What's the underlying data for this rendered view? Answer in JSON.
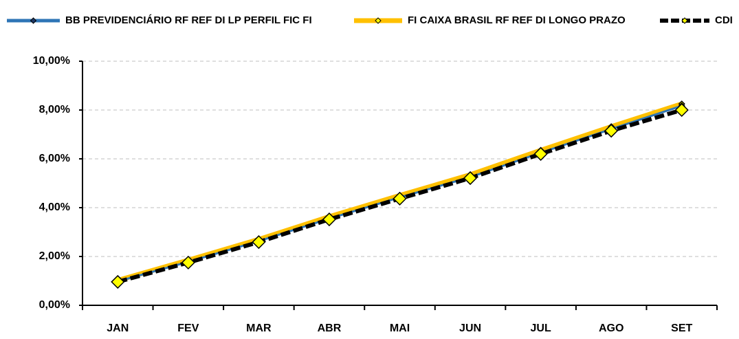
{
  "chart_data": {
    "type": "line",
    "categories": [
      "JAN",
      "FEV",
      "MAR",
      "ABR",
      "MAI",
      "JUN",
      "JUL",
      "AGO",
      "SET"
    ],
    "series": [
      {
        "name": "BB PREVIDENCIÁRIO RF REF DI LP PERFIL FIC FI",
        "color": "#2e75b6",
        "values": [
          0.98,
          1.78,
          2.63,
          3.55,
          4.42,
          5.25,
          6.25,
          7.22,
          8.17
        ]
      },
      {
        "name": "FI CAIXA BRASIL RF REF DI LONGO PRAZO",
        "color": "#ffc000",
        "values": [
          1.02,
          1.85,
          2.7,
          3.63,
          4.5,
          5.35,
          6.35,
          7.32,
          8.25
        ]
      },
      {
        "name": "CDI",
        "color": "#000000",
        "values": [
          0.96,
          1.75,
          2.59,
          3.52,
          4.37,
          5.21,
          6.2,
          7.15,
          8.0
        ]
      }
    ],
    "ylim": [
      0,
      10
    ],
    "yticks": [
      {
        "value": 0,
        "label": "0,00%"
      },
      {
        "value": 2,
        "label": "2,00%"
      },
      {
        "value": 4,
        "label": "4,00%"
      },
      {
        "value": 6,
        "label": "6,00%"
      },
      {
        "value": 8,
        "label": "8,00%"
      },
      {
        "value": 10,
        "label": "10,00%"
      }
    ],
    "grid": true,
    "legend": "top"
  }
}
